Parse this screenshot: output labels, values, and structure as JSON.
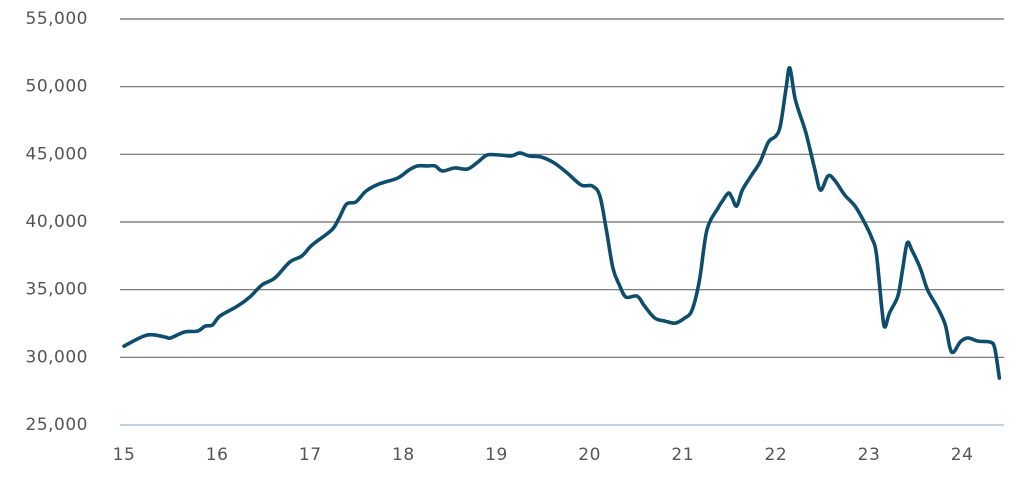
{
  "chart_data": {
    "type": "line",
    "x": [
      15.0,
      15.25,
      15.44,
      15.5,
      15.65,
      15.79,
      15.87,
      15.95,
      16.03,
      16.22,
      16.35,
      16.48,
      16.62,
      16.78,
      16.91,
      17.02,
      17.23,
      17.31,
      17.39,
      17.49,
      17.6,
      17.74,
      17.94,
      18.06,
      18.15,
      18.26,
      18.34,
      18.42,
      18.55,
      18.69,
      18.8,
      18.9,
      19.03,
      19.16,
      19.25,
      19.35,
      19.48,
      19.62,
      19.76,
      19.91,
      20.03,
      20.11,
      20.18,
      20.25,
      20.32,
      20.39,
      20.51,
      20.59,
      20.7,
      20.81,
      20.92,
      21.02,
      21.1,
      21.18,
      21.26,
      21.38,
      21.42,
      21.49,
      21.53,
      21.58,
      21.64,
      21.74,
      21.83,
      21.92,
      22.0,
      22.05,
      22.11,
      22.15,
      22.21,
      22.32,
      22.42,
      22.48,
      22.56,
      22.63,
      22.74,
      22.85,
      22.95,
      23.03,
      23.08,
      23.14,
      23.17,
      23.22,
      23.31,
      23.36,
      23.41,
      23.46,
      23.55,
      23.63,
      23.74,
      23.82,
      23.87,
      23.91,
      23.98,
      24.06,
      24.17,
      24.3,
      24.35,
      24.4
    ],
    "series": [
      {
        "color": "#0e4d6b",
        "values": [
          30830,
          31650,
          31500,
          31430,
          31870,
          31940,
          32300,
          32390,
          33050,
          33790,
          34450,
          35340,
          35860,
          37040,
          37490,
          38300,
          39410,
          40290,
          41330,
          41480,
          42290,
          42810,
          43250,
          43840,
          44140,
          44140,
          44140,
          43770,
          43990,
          43920,
          44430,
          44950,
          44950,
          44880,
          45100,
          44880,
          44800,
          44360,
          43620,
          42730,
          42660,
          41920,
          39410,
          36600,
          35340,
          34450,
          34520,
          33790,
          32900,
          32680,
          32530,
          32900,
          33490,
          35710,
          39410,
          41040,
          41480,
          42140,
          41780,
          41180,
          42360,
          43470,
          44430,
          45910,
          46350,
          47170,
          49900,
          51380,
          49020,
          46650,
          43840,
          42360,
          43400,
          43100,
          41990,
          41180,
          39990,
          38820,
          37630,
          33490,
          32240,
          33270,
          34520,
          36450,
          38440,
          37930,
          36600,
          34970,
          33640,
          32390,
          30690,
          30390,
          31130,
          31430,
          31200,
          31130,
          30690,
          28470
        ]
      }
    ],
    "xlim": [
      15,
      24.45
    ],
    "xticks": [
      15,
      16,
      17,
      18,
      19,
      20,
      21,
      22,
      23,
      24
    ],
    "ylim": [
      25000,
      55000
    ],
    "yticks": [
      {
        "value": 25000,
        "label": "25,000"
      },
      {
        "value": 30000,
        "label": "30,000"
      },
      {
        "value": 35000,
        "label": "35,000"
      },
      {
        "value": 40000,
        "label": "40,000"
      },
      {
        "value": 45000,
        "label": "45,000"
      },
      {
        "value": 50000,
        "label": "50,000"
      },
      {
        "value": 55000,
        "label": "55,000"
      }
    ],
    "grid": true
  }
}
